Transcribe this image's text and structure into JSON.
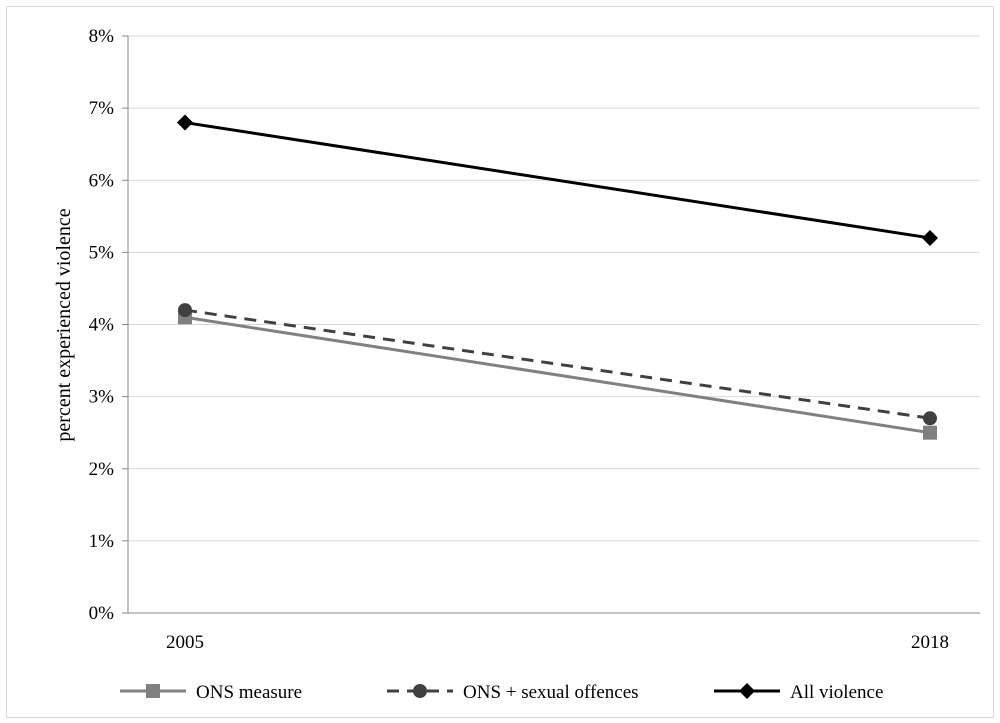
{
  "chart_data": {
    "type": "line",
    "title": "",
    "xlabel": "",
    "ylabel": "percent experienced violence",
    "categories": [
      "2005",
      "2018"
    ],
    "ylim": [
      0,
      0.08
    ],
    "yticks": [
      "0%",
      "1%",
      "2%",
      "3%",
      "4%",
      "5%",
      "6%",
      "7%",
      "8%"
    ],
    "grid": true,
    "legend_position": "bottom",
    "series": [
      {
        "name": "ONS measure",
        "values": [
          0.041,
          0.025
        ],
        "color": "#808080",
        "marker": "square",
        "dash": "solid"
      },
      {
        "name": "ONS + sexual offences",
        "values": [
          0.042,
          0.027
        ],
        "color": "#404040",
        "marker": "circle",
        "dash": "dashed"
      },
      {
        "name": "All violence",
        "values": [
          0.068,
          0.052
        ],
        "color": "#000000",
        "marker": "diamond",
        "dash": "solid"
      }
    ]
  }
}
